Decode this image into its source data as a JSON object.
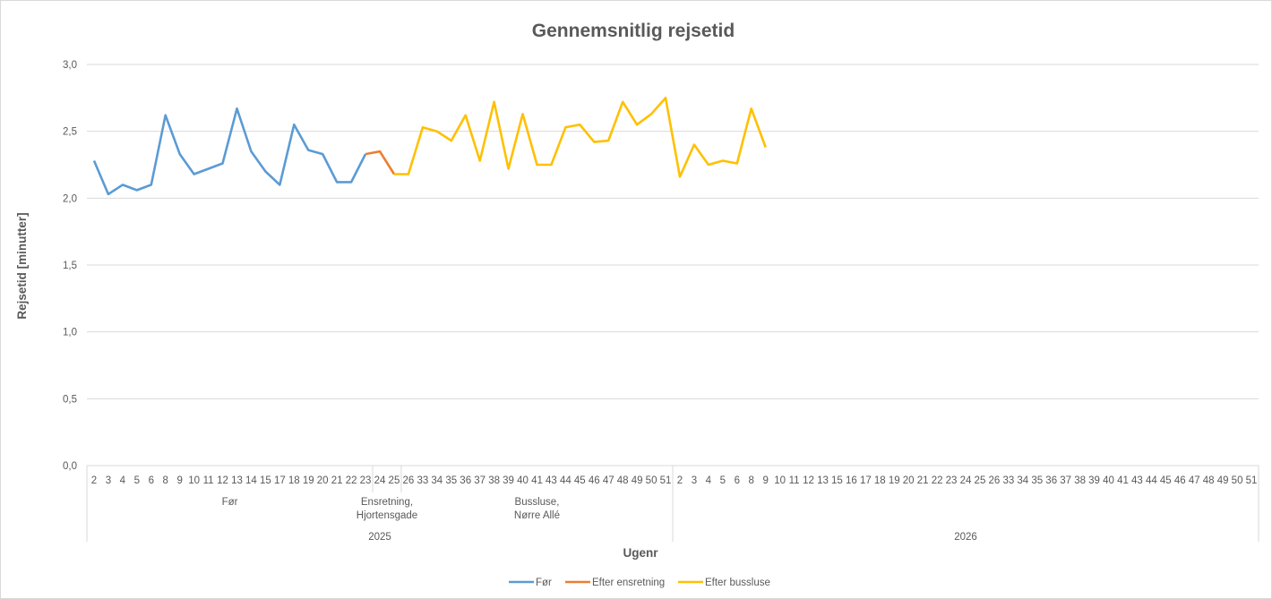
{
  "chart_data": {
    "type": "line",
    "title": "Gennemsnitlig rejsetid",
    "xlabel": "Ugenr",
    "ylabel": "Rejsetid [minutter]",
    "ylim": [
      0,
      3
    ],
    "yticks": [
      "0,0",
      "0,5",
      "1,0",
      "1,5",
      "2,0",
      "2,5",
      "3,0"
    ],
    "ytick_values": [
      0,
      0.5,
      1,
      1.5,
      2,
      2.5,
      3
    ],
    "grid": true,
    "legend_position": "bottom",
    "years": [
      {
        "label": "2025",
        "weeks": [
          "2",
          "3",
          "4",
          "5",
          "6",
          "8",
          "9",
          "10",
          "11",
          "12",
          "13",
          "14",
          "15",
          "17",
          "18",
          "19",
          "20",
          "21",
          "22",
          "23",
          "24",
          "25",
          "26",
          "33",
          "34",
          "35",
          "36",
          "37",
          "38",
          "39",
          "40",
          "41",
          "43",
          "44",
          "45",
          "46",
          "47",
          "48",
          "49",
          "50",
          "51"
        ]
      },
      {
        "label": "2026",
        "weeks": [
          "2",
          "3",
          "4",
          "5",
          "6",
          "8",
          "9",
          "10",
          "11",
          "12",
          "13",
          "15",
          "16",
          "17",
          "18",
          "19",
          "20",
          "21",
          "22",
          "23",
          "24",
          "25",
          "26",
          "33",
          "34",
          "35",
          "36",
          "37",
          "38",
          "39",
          "40",
          "41",
          "43",
          "44",
          "45",
          "46",
          "47",
          "48",
          "49",
          "50",
          "51"
        ]
      }
    ],
    "periods": [
      {
        "label": "Før",
        "first": 0,
        "last": 19
      },
      {
        "label": "Ensretning, Hjortensgade",
        "lines": [
          "Ensretning,",
          "Hjortensgade"
        ],
        "first": 20,
        "last": 21
      },
      {
        "label": "Bussluse, Nørre Allé",
        "lines": [
          "Bussluse,",
          "Nørre Allé"
        ],
        "first": 22,
        "last": 40
      }
    ],
    "series": [
      {
        "name": "Før",
        "color": "#5B9BD5",
        "start": 0,
        "values": [
          2.28,
          2.03,
          2.1,
          2.06,
          2.1,
          2.62,
          2.33,
          2.18,
          2.22,
          2.26,
          2.67,
          2.35,
          2.2,
          2.1,
          2.55,
          2.36,
          2.33,
          2.12,
          2.12,
          2.33
        ]
      },
      {
        "name": "Efter ensretning",
        "color": "#ED7D31",
        "start": 19,
        "values": [
          2.33,
          2.35,
          2.18
        ]
      },
      {
        "name": "Efter bussluse",
        "color": "#FFC000",
        "start": 21,
        "values": [
          2.18,
          2.18,
          2.53,
          2.5,
          2.43,
          2.62,
          2.28,
          2.72,
          2.22,
          2.63,
          2.25,
          2.25,
          2.53,
          2.55,
          2.42,
          2.43,
          2.72,
          2.55,
          2.63,
          2.75,
          2.16,
          2.4,
          2.25,
          2.28,
          2.26,
          2.67,
          2.38
        ]
      }
    ]
  }
}
